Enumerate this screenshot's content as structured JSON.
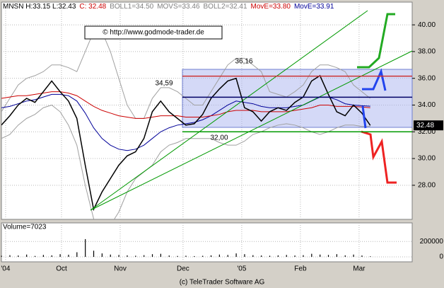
{
  "chart_data": {
    "type": "line",
    "header": [
      {
        "text": "MNSN H:33.15 L:32.43",
        "color": "#000000"
      },
      {
        "text": "C: 32.48",
        "color": "#cc0000"
      },
      {
        "text": "BOLL1=34.50",
        "color": "#808080"
      },
      {
        "text": "MOVS=33.46",
        "color": "#808080"
      },
      {
        "text": "BOLL2=32.41",
        "color": "#808080"
      },
      {
        "text": "MovE=33.80",
        "color": "#cc0000"
      },
      {
        "text": "MovE=33.91",
        "color": "#000099"
      }
    ],
    "watermark": "© http://www.godmode-trader.de",
    "footer": "(c) TeleTrader Software AG",
    "volume_label": "Volume=7023",
    "last_price": {
      "value": 32.48,
      "label": "32.48"
    },
    "levels": [
      {
        "value": 36.16,
        "label": "36,16",
        "color": "#cc3333"
      },
      {
        "value": 34.59,
        "label": "34,59",
        "color": "#000066"
      },
      {
        "value": 32.0,
        "label": "32,00",
        "color": "#009900"
      }
    ],
    "x": [
      0,
      3,
      6,
      9,
      12,
      15,
      18,
      21,
      24,
      27,
      30,
      33,
      36,
      39,
      42,
      45,
      48,
      51,
      54,
      57,
      60,
      63,
      66,
      69,
      72,
      75,
      78,
      81,
      84,
      87,
      90,
      93,
      96,
      99,
      102,
      105,
      108,
      111,
      114,
      117,
      120,
      123,
      126,
      129,
      132
    ],
    "xlim": [
      0,
      147
    ],
    "xticks": [
      {
        "value": 1.5,
        "label": "'04"
      },
      {
        "value": 21.5,
        "label": "Oct"
      },
      {
        "value": 42.5,
        "label": "Nov"
      },
      {
        "value": 65,
        "label": "Dec"
      },
      {
        "value": 86,
        "label": "'05"
      },
      {
        "value": 107,
        "label": "Feb"
      },
      {
        "value": 128,
        "label": "Mar"
      }
    ],
    "ylim": [
      25.45,
      41.7
    ],
    "yticks": [
      {
        "value": 28,
        "label": "28.00"
      },
      {
        "value": 30,
        "label": "30.00"
      },
      {
        "value": 32,
        "label": "32.00"
      },
      {
        "value": 34,
        "label": "34.00"
      },
      {
        "value": 36,
        "label": "36.00"
      },
      {
        "value": 38,
        "label": "38.00"
      },
      {
        "value": 40,
        "label": "40.00"
      }
    ],
    "grid": true,
    "series": [
      {
        "name": "Close",
        "color": "#000000",
        "values": [
          32.5,
          33.2,
          34,
          34.5,
          34.2,
          35,
          35.8,
          35,
          34.3,
          33,
          29.5,
          26.2,
          27.5,
          28.5,
          29.5,
          30.2,
          30.5,
          31.5,
          33.5,
          34.3,
          33.5,
          33,
          32.5,
          32.6,
          33.3,
          34.5,
          35.2,
          35.8,
          36,
          33.8,
          33.5,
          32.8,
          33.5,
          33.8,
          33.6,
          34.2,
          34.6,
          35.8,
          36.2,
          34.8,
          33.5,
          33.2,
          34,
          33.4,
          32.48
        ]
      },
      {
        "name": "MovE slow",
        "color": "#cc0000",
        "values": [
          34.5,
          34.6,
          34.7,
          34.7,
          34.8,
          34.9,
          35,
          35,
          34.9,
          34.7,
          34.3,
          33.9,
          33.6,
          33.4,
          33.2,
          33.1,
          33,
          33,
          33.1,
          33.2,
          33.2,
          33.2,
          33.1,
          33.1,
          33.1,
          33.2,
          33.3,
          33.5,
          33.6,
          33.6,
          33.6,
          33.5,
          33.5,
          33.5,
          33.5,
          33.6,
          33.7,
          33.8,
          34,
          34,
          33.9,
          33.9,
          33.9,
          33.85,
          33.8
        ]
      },
      {
        "name": "MovE fast",
        "color": "#000099",
        "values": [
          33.8,
          33.9,
          34.1,
          34.3,
          34.4,
          34.6,
          34.8,
          34.8,
          34.7,
          34.3,
          33.4,
          32.3,
          31.5,
          31,
          30.7,
          30.6,
          30.7,
          31,
          31.5,
          32,
          32.3,
          32.5,
          32.6,
          32.7,
          32.9,
          33.2,
          33.6,
          34,
          34.3,
          34.2,
          34.1,
          33.9,
          33.8,
          33.8,
          33.8,
          33.9,
          34,
          34.3,
          34.6,
          34.6,
          34.4,
          34.1,
          34,
          33.95,
          33.91
        ]
      },
      {
        "name": "BOLL1",
        "color": "#a0a0a0",
        "values": [
          33.5,
          34.5,
          35.5,
          36,
          36.2,
          36.5,
          37,
          37,
          36.8,
          36.5,
          38,
          39.5,
          39.5,
          38,
          36,
          34,
          33,
          33,
          34.5,
          35.3,
          35.3,
          35,
          34.5,
          34,
          34,
          35,
          36,
          37,
          37.5,
          37.5,
          37,
          36.5,
          35,
          34.8,
          34.6,
          35,
          35.5,
          36.5,
          37,
          37,
          36.8,
          36.5,
          35.5,
          35,
          34.5
        ]
      },
      {
        "name": "BOLL2",
        "color": "#a0a0a0",
        "values": [
          31.5,
          31.8,
          32.5,
          33,
          33.3,
          33.8,
          34,
          33.5,
          32.5,
          31,
          28,
          25.5,
          24.5,
          25,
          26,
          27.5,
          28.5,
          29,
          29.5,
          30.5,
          31,
          31.2,
          31.5,
          31.5,
          31.5,
          31.5,
          31.2,
          31,
          31,
          31.3,
          31.8,
          32,
          32.3,
          32.5,
          32.6,
          32.5,
          32.3,
          32,
          31.8,
          32,
          32.3,
          32.5,
          32.5,
          32.4,
          32.41
        ]
      }
    ],
    "volume": {
      "color": "#000000",
      "ylim": [
        -64000,
        440000
      ],
      "yticks": [
        0,
        200000
      ],
      "values": [
        15000,
        22000,
        18000,
        30000,
        12000,
        25000,
        20000,
        35000,
        28000,
        60000,
        230000,
        80000,
        45000,
        30000,
        25000,
        20000,
        15000,
        22000,
        35000,
        40000,
        18000,
        12000,
        15000,
        10000,
        14000,
        20000,
        30000,
        25000,
        45000,
        35000,
        22000,
        18000,
        15000,
        20000,
        25000,
        18000,
        22000,
        40000,
        30000,
        25000,
        35000,
        20000,
        30000,
        18000,
        7023
      ]
    }
  }
}
